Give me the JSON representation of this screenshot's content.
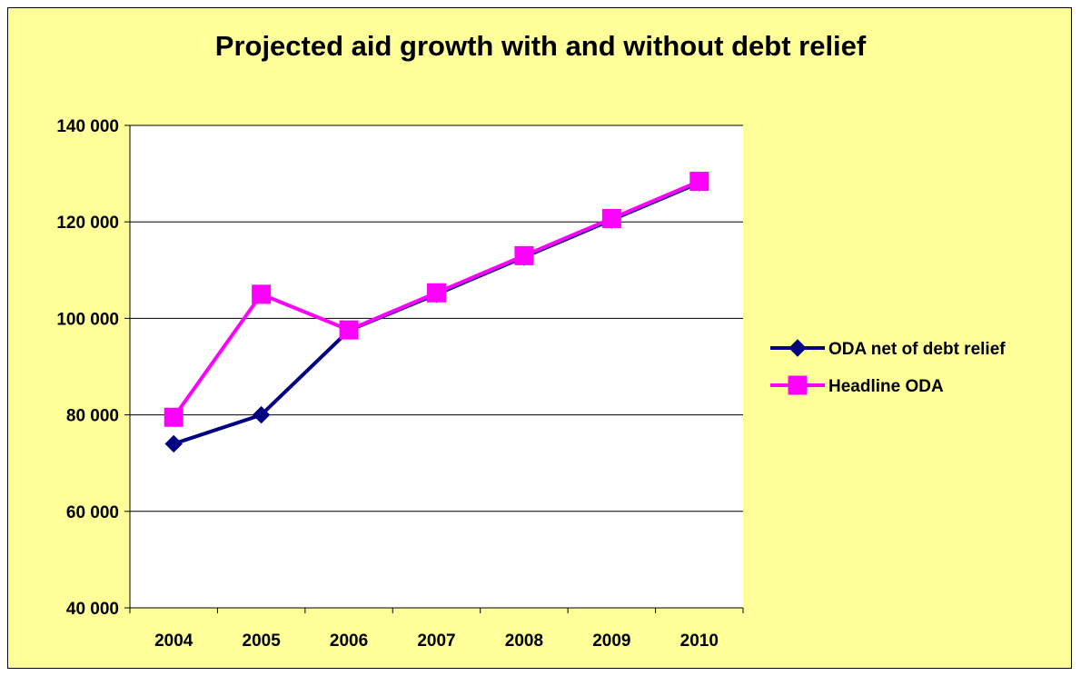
{
  "colors": {
    "background": "#FFFF99",
    "plot_area": "#FFFFFF",
    "gridline": "#000000",
    "series_1": "#000080",
    "series_2": "#FF00FF"
  },
  "chart_data": {
    "type": "line",
    "title": "Projected aid growth with and without debt relief",
    "xlabel": "",
    "ylabel": "",
    "categories": [
      "2004",
      "2005",
      "2006",
      "2007",
      "2008",
      "2009",
      "2010"
    ],
    "ylim": [
      40000,
      140000
    ],
    "yticks": [
      40000,
      60000,
      80000,
      100000,
      120000,
      140000
    ],
    "ytick_labels": [
      "40 000",
      "60 000",
      "80 000",
      "100 000",
      "120 000",
      "140 000"
    ],
    "grid": true,
    "legend_position": "right",
    "series": [
      {
        "name": "ODA net of debt relief",
        "marker": "diamond",
        "color": "#000080",
        "values": [
          74000,
          80000,
          97500,
          105000,
          112700,
          120400,
          128100
        ]
      },
      {
        "name": "Headline ODA",
        "marker": "square",
        "color": "#FF00FF",
        "values": [
          79500,
          105000,
          97600,
          105300,
          113000,
          120700,
          128400
        ]
      }
    ]
  }
}
